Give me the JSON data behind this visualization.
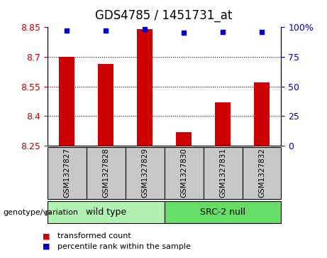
{
  "title": "GDS4785 / 1451731_at",
  "samples": [
    "GSM1327827",
    "GSM1327828",
    "GSM1327829",
    "GSM1327830",
    "GSM1327831",
    "GSM1327832"
  ],
  "bar_values": [
    8.7,
    8.665,
    8.84,
    8.32,
    8.47,
    8.57
  ],
  "percentile_values": [
    97,
    97,
    98,
    95,
    96,
    96
  ],
  "y_min": 8.25,
  "y_max": 8.85,
  "y_ticks": [
    8.25,
    8.4,
    8.55,
    8.7,
    8.85
  ],
  "y_tick_labels": [
    "8.25",
    "8.4",
    "8.55",
    "8.7",
    "8.85"
  ],
  "right_y_ticks": [
    0,
    25,
    50,
    75,
    100
  ],
  "right_y_tick_labels": [
    "0",
    "25",
    "50",
    "75",
    "100%"
  ],
  "bar_color": "#cc0000",
  "dot_color": "#0000cc",
  "group_wt_color": "#b0f0b0",
  "group_src_color": "#66dd66",
  "sample_box_color": "#c8c8c8",
  "legend_items": [
    {
      "color": "#cc0000",
      "label": "transformed count"
    },
    {
      "color": "#0000cc",
      "label": "percentile rank within the sample"
    }
  ],
  "title_fontsize": 12,
  "tick_fontsize": 9,
  "sample_fontsize": 7.5
}
